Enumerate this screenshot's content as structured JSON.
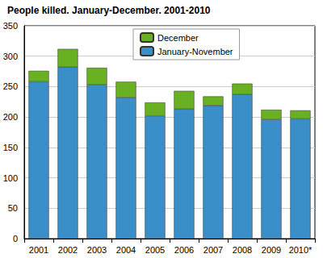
{
  "chart_data": {
    "type": "bar",
    "title": "People killed. January-December. 2001-2010",
    "categories": [
      "2001",
      "2002",
      "2003",
      "2004",
      "2005",
      "2006",
      "2007",
      "2008",
      "2009",
      "2010*"
    ],
    "series": [
      {
        "name": "January-November",
        "color": "#3a8fc9",
        "values": [
          258,
          282,
          253,
          232,
          202,
          213,
          219,
          237,
          196,
          197
        ]
      },
      {
        "name": "December",
        "color": "#6ab023",
        "values": [
          18,
          30,
          28,
          26,
          22,
          30,
          15,
          18,
          16,
          14
        ]
      }
    ],
    "ylim": [
      0,
      350
    ],
    "yticks": [
      0,
      50,
      100,
      150,
      200,
      250,
      300,
      350
    ],
    "stacked": true,
    "grid": true,
    "legend": "top"
  }
}
